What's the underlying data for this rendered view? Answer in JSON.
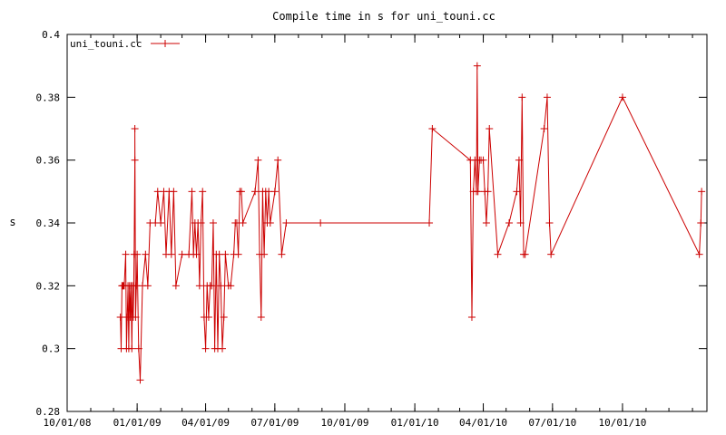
{
  "chart_data": {
    "type": "line",
    "title": "Compile time in s for uni_touni.cc",
    "xlabel": "",
    "ylabel": "s",
    "ylim": [
      0.28,
      0.4
    ],
    "yticks": [
      0.28,
      0.3,
      0.32,
      0.34,
      0.36,
      0.38,
      0.4
    ],
    "ytick_labels": [
      "0.28",
      "0.3",
      "0.32",
      "0.34",
      "0.36",
      "0.38",
      "0.4"
    ],
    "xlim": [
      "2008-10-01",
      "2011-01-20"
    ],
    "xticks": [
      "2008-10-01",
      "2009-01-01",
      "2009-04-01",
      "2009-07-01",
      "2009-10-01",
      "2010-01-01",
      "2010-04-01",
      "2010-07-01",
      "2010-10-01"
    ],
    "xtick_labels": [
      "10/01/08",
      "01/01/09",
      "04/01/09",
      "07/01/09",
      "10/01/09",
      "01/01/10",
      "04/01/10",
      "07/01/10",
      "10/01/10"
    ],
    "grid": false,
    "legend_position": "top-left",
    "series": [
      {
        "name": "uni_touni.cc",
        "color": "#cc0000",
        "points": [
          [
            "2008-12-10",
            0.31
          ],
          [
            "2008-12-11",
            0.3
          ],
          [
            "2008-12-12",
            0.32
          ],
          [
            "2008-12-13",
            0.32
          ],
          [
            "2008-12-14",
            0.32
          ],
          [
            "2008-12-15",
            0.32
          ],
          [
            "2008-12-17",
            0.33
          ],
          [
            "2008-12-18",
            0.3
          ],
          [
            "2008-12-19",
            0.31
          ],
          [
            "2008-12-20",
            0.32
          ],
          [
            "2008-12-21",
            0.3
          ],
          [
            "2008-12-22",
            0.32
          ],
          [
            "2008-12-23",
            0.31
          ],
          [
            "2008-12-24",
            0.32
          ],
          [
            "2008-12-25",
            0.3
          ],
          [
            "2008-12-26",
            0.32
          ],
          [
            "2008-12-27",
            0.31
          ],
          [
            "2008-12-28",
            0.33
          ],
          [
            "2008-12-29",
            0.36
          ],
          [
            "2008-12-29",
            0.37
          ],
          [
            "2008-12-30",
            0.31
          ],
          [
            "2008-12-31",
            0.32
          ],
          [
            "2009-01-01",
            0.33
          ],
          [
            "2009-01-03",
            0.3
          ],
          [
            "2009-01-05",
            0.29
          ],
          [
            "2009-01-08",
            0.32
          ],
          [
            "2009-01-12",
            0.33
          ],
          [
            "2009-01-15",
            0.32
          ],
          [
            "2009-01-18",
            0.34
          ],
          [
            "2009-01-25",
            0.34
          ],
          [
            "2009-01-28",
            0.35
          ],
          [
            "2009-02-01",
            0.34
          ],
          [
            "2009-02-05",
            0.35
          ],
          [
            "2009-02-08",
            0.33
          ],
          [
            "2009-02-12",
            0.35
          ],
          [
            "2009-02-15",
            0.33
          ],
          [
            "2009-02-18",
            0.35
          ],
          [
            "2009-02-21",
            0.32
          ],
          [
            "2009-03-01",
            0.33
          ],
          [
            "2009-03-10",
            0.33
          ],
          [
            "2009-03-14",
            0.35
          ],
          [
            "2009-03-16",
            0.33
          ],
          [
            "2009-03-18",
            0.34
          ],
          [
            "2009-03-20",
            0.33
          ],
          [
            "2009-03-22",
            0.34
          ],
          [
            "2009-03-24",
            0.32
          ],
          [
            "2009-03-26",
            0.34
          ],
          [
            "2009-03-28",
            0.35
          ],
          [
            "2009-03-30",
            0.31
          ],
          [
            "2009-04-01",
            0.3
          ],
          [
            "2009-04-03",
            0.32
          ],
          [
            "2009-04-05",
            0.31
          ],
          [
            "2009-04-07",
            0.32
          ],
          [
            "2009-04-09",
            0.32
          ],
          [
            "2009-04-11",
            0.34
          ],
          [
            "2009-04-13",
            0.3
          ],
          [
            "2009-04-15",
            0.33
          ],
          [
            "2009-04-17",
            0.3
          ],
          [
            "2009-04-19",
            0.33
          ],
          [
            "2009-04-21",
            0.32
          ],
          [
            "2009-04-23",
            0.3
          ],
          [
            "2009-04-25",
            0.31
          ],
          [
            "2009-04-27",
            0.33
          ],
          [
            "2009-05-01",
            0.32
          ],
          [
            "2009-05-04",
            0.32
          ],
          [
            "2009-05-08",
            0.33
          ],
          [
            "2009-05-10",
            0.34
          ],
          [
            "2009-05-12",
            0.34
          ],
          [
            "2009-05-14",
            0.33
          ],
          [
            "2009-05-16",
            0.35
          ],
          [
            "2009-05-18",
            0.35
          ],
          [
            "2009-05-20",
            0.34
          ],
          [
            "2009-06-05",
            0.35
          ],
          [
            "2009-06-09",
            0.36
          ],
          [
            "2009-06-11",
            0.33
          ],
          [
            "2009-06-13",
            0.31
          ],
          [
            "2009-06-15",
            0.35
          ],
          [
            "2009-06-17",
            0.33
          ],
          [
            "2009-06-19",
            0.35
          ],
          [
            "2009-06-21",
            0.34
          ],
          [
            "2009-06-23",
            0.35
          ],
          [
            "2009-06-25",
            0.34
          ],
          [
            "2009-07-01",
            0.35
          ],
          [
            "2009-07-05",
            0.36
          ],
          [
            "2009-07-10",
            0.33
          ],
          [
            "2009-07-16",
            0.34
          ],
          [
            "2009-08-30",
            0.34
          ],
          [
            "2010-01-20",
            0.34
          ],
          [
            "2010-01-24",
            0.37
          ],
          [
            "2010-03-15",
            0.36
          ],
          [
            "2010-03-17",
            0.31
          ],
          [
            "2010-03-19",
            0.35
          ],
          [
            "2010-03-21",
            0.36
          ],
          [
            "2010-03-23",
            0.35
          ],
          [
            "2010-03-24",
            0.39
          ],
          [
            "2010-03-25",
            0.35
          ],
          [
            "2010-03-27",
            0.36
          ],
          [
            "2010-03-29",
            0.36
          ],
          [
            "2010-04-01",
            0.36
          ],
          [
            "2010-04-03",
            0.35
          ],
          [
            "2010-04-05",
            0.34
          ],
          [
            "2010-04-07",
            0.35
          ],
          [
            "2010-04-09",
            0.37
          ],
          [
            "2010-04-20",
            0.33
          ],
          [
            "2010-05-05",
            0.34
          ],
          [
            "2010-05-15",
            0.35
          ],
          [
            "2010-05-18",
            0.36
          ],
          [
            "2010-05-20",
            0.34
          ],
          [
            "2010-05-22",
            0.38
          ],
          [
            "2010-05-24",
            0.33
          ],
          [
            "2010-05-26",
            0.33
          ],
          [
            "2010-06-20",
            0.37
          ],
          [
            "2010-06-24",
            0.38
          ],
          [
            "2010-06-27",
            0.34
          ],
          [
            "2010-06-29",
            0.33
          ],
          [
            "2010-10-01",
            0.38
          ],
          [
            "2011-01-10",
            0.33
          ],
          [
            "2011-01-12",
            0.34
          ],
          [
            "2011-01-13",
            0.35
          ]
        ]
      }
    ]
  }
}
